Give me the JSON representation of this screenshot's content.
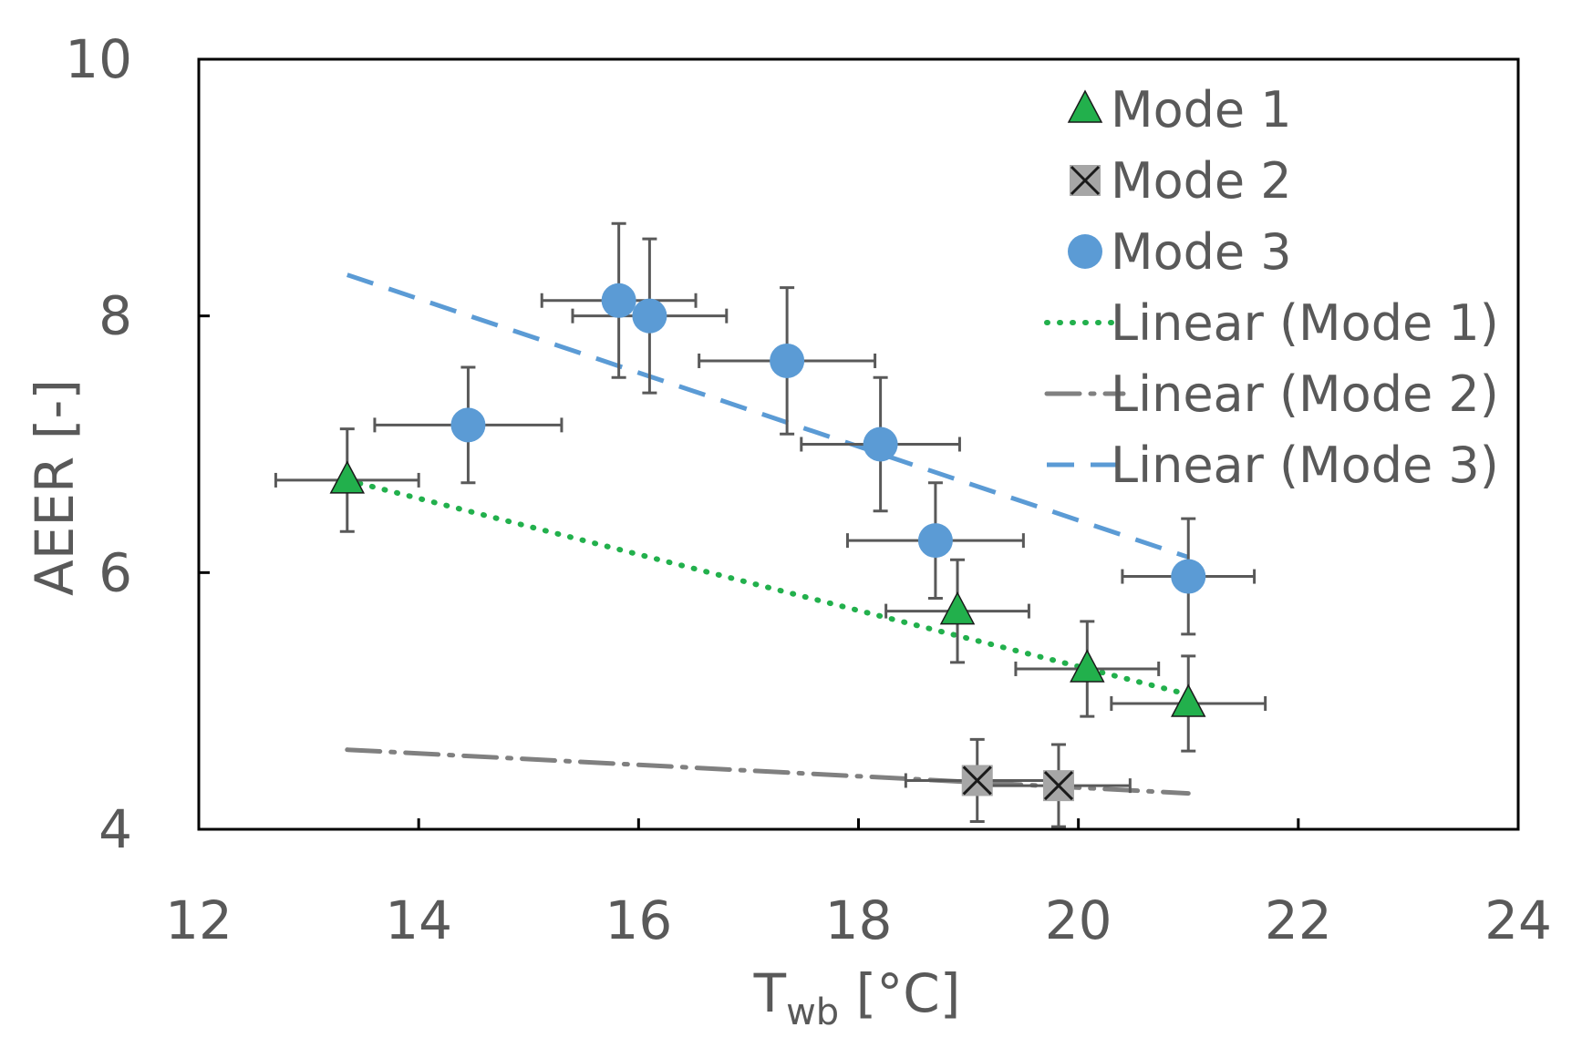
{
  "chart_data": {
    "type": "scatter",
    "title": "",
    "xlabel": "T",
    "xlabel_sub": "wb",
    "xlabel_unit": " [°C]",
    "ylabel": "AEER [-]",
    "xlim": [
      12,
      24
    ],
    "ylim": [
      4,
      10
    ],
    "x_ticks": [
      12,
      14,
      16,
      18,
      20,
      22,
      24
    ],
    "y_ticks": [
      4,
      6,
      8,
      10
    ],
    "x_tick_labels": [
      "12",
      "14",
      "16",
      "18",
      "20",
      "22",
      "24"
    ],
    "y_tick_labels": [
      "4",
      "6",
      "8",
      "10"
    ],
    "legend_position": "top-right",
    "series": [
      {
        "name": "Mode 1",
        "marker": "triangle",
        "color": "#22B04C",
        "points": [
          {
            "x": 13.35,
            "y": 6.72,
            "xerr": 0.65,
            "yerr": 0.4
          },
          {
            "x": 18.9,
            "y": 5.7,
            "xerr": 0.65,
            "yerr": 0.4
          },
          {
            "x": 20.08,
            "y": 5.25,
            "xerr": 0.65,
            "yerr": 0.37
          },
          {
            "x": 21.0,
            "y": 4.98,
            "xerr": 0.7,
            "yerr": 0.37
          }
        ]
      },
      {
        "name": "Mode 2",
        "marker": "x-square",
        "color": "#A6A6A6",
        "points": [
          {
            "x": 19.08,
            "y": 4.38,
            "xerr": 0.65,
            "yerr": 0.32
          },
          {
            "x": 19.82,
            "y": 4.34,
            "xerr": 0.65,
            "yerr": 0.32
          }
        ]
      },
      {
        "name": "Mode 3",
        "marker": "circle",
        "color": "#5B9BD5",
        "points": [
          {
            "x": 14.45,
            "y": 7.15,
            "xerr": 0.85,
            "yerr": 0.45
          },
          {
            "x": 15.82,
            "y": 8.12,
            "xerr": 0.7,
            "yerr": 0.6
          },
          {
            "x": 16.1,
            "y": 8.0,
            "xerr": 0.7,
            "yerr": 0.6
          },
          {
            "x": 17.35,
            "y": 7.65,
            "xerr": 0.8,
            "yerr": 0.57
          },
          {
            "x": 18.2,
            "y": 7.0,
            "xerr": 0.72,
            "yerr": 0.52
          },
          {
            "x": 18.7,
            "y": 6.25,
            "xerr": 0.8,
            "yerr": 0.45
          },
          {
            "x": 21.0,
            "y": 5.97,
            "xerr": 0.6,
            "yerr": 0.45
          }
        ]
      }
    ],
    "trendlines": [
      {
        "name": "Linear (Mode 1)",
        "style": "dotted",
        "color": "#22B04C",
        "x": [
          13.35,
          21.0
        ],
        "y": [
          6.72,
          5.05
        ]
      },
      {
        "name": "Linear (Mode 2)",
        "style": "dash-dot",
        "color": "#808080",
        "x": [
          13.35,
          21.0
        ],
        "y": [
          4.62,
          4.28
        ]
      },
      {
        "name": "Linear (Mode 3)",
        "style": "dashed",
        "color": "#5B9BD5",
        "x": [
          13.35,
          21.0
        ],
        "y": [
          8.32,
          6.12
        ]
      }
    ]
  }
}
